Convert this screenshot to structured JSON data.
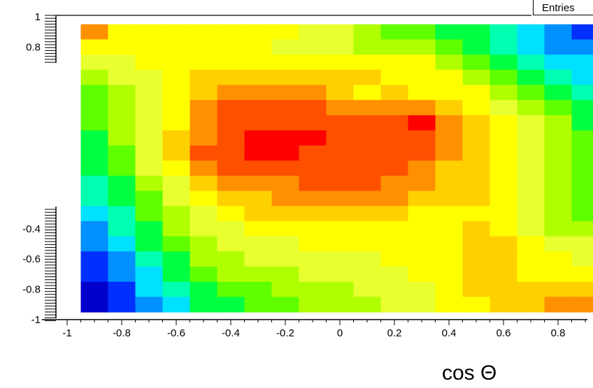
{
  "chart_data": {
    "type": "heatmap",
    "stats_box_label": "Entries",
    "xlabel": "cos Θ",
    "ylabel": "",
    "xlim": [
      -1,
      0.9
    ],
    "ylim": [
      -1,
      1
    ],
    "x_ticks": [
      "-1",
      "-0.8",
      "-0.6",
      "-0.4",
      "-0.2",
      "0",
      "0.2",
      "0.4",
      "0.6",
      "0.8"
    ],
    "y_ticks": [
      {
        "label": "1",
        "value": 1
      },
      {
        "label": "0.8",
        "value": 0.8
      },
      {
        "label": "-0.4",
        "value": -0.4
      },
      {
        "label": "-0.6",
        "value": -0.6
      },
      {
        "label": "-0.8",
        "value": -0.8
      },
      {
        "label": "-1",
        "value": -1
      }
    ],
    "colorscale": [
      "#0000cc",
      "#0030ff",
      "#0090ff",
      "#00e0ff",
      "#00ffb0",
      "#00ff40",
      "#60ff00",
      "#b0ff00",
      "#e8ff30",
      "#ffff00",
      "#ffd000",
      "#ff9000",
      "#ff5000",
      "#ff0000"
    ],
    "x_cells": [
      -0.9,
      -0.8,
      -0.7,
      -0.6,
      -0.5,
      -0.4,
      -0.3,
      -0.2,
      -0.1,
      0.0,
      0.1,
      0.2,
      0.3,
      0.4,
      0.5,
      0.6,
      0.7,
      0.8,
      0.9
    ],
    "y_cells": [
      0.9,
      0.8,
      0.7,
      0.6,
      0.5,
      0.4,
      0.3,
      0.2,
      0.1,
      0.0,
      -0.1,
      -0.2,
      -0.3,
      -0.4,
      -0.5,
      -0.6,
      -0.7,
      -0.8,
      -0.9
    ],
    "z": [
      [
        11,
        9,
        9,
        9,
        9,
        9,
        9,
        9,
        8,
        8,
        7,
        6,
        6,
        5,
        5,
        4,
        3,
        2,
        1
      ],
      [
        9,
        9,
        9,
        9,
        9,
        9,
        9,
        8,
        8,
        8,
        7,
        7,
        7,
        6,
        5,
        4,
        3,
        2,
        2
      ],
      [
        8,
        8,
        9,
        9,
        9,
        9,
        9,
        9,
        9,
        9,
        9,
        9,
        9,
        7,
        6,
        5,
        4,
        3,
        3
      ],
      [
        7,
        8,
        8,
        9,
        10,
        10,
        10,
        10,
        10,
        10,
        10,
        9,
        9,
        9,
        7,
        6,
        5,
        4,
        3
      ],
      [
        6,
        7,
        8,
        9,
        10,
        11,
        11,
        11,
        11,
        10,
        9,
        10,
        9,
        9,
        9,
        7,
        6,
        5,
        4
      ],
      [
        6,
        7,
        8,
        9,
        11,
        12,
        12,
        12,
        12,
        11,
        11,
        11,
        11,
        10,
        9,
        8,
        7,
        6,
        5
      ],
      [
        6,
        7,
        8,
        9,
        11,
        12,
        12,
        12,
        12,
        12,
        12,
        12,
        13,
        11,
        10,
        9,
        8,
        7,
        5
      ],
      [
        5,
        7,
        8,
        10,
        11,
        12,
        13,
        13,
        13,
        12,
        12,
        12,
        12,
        11,
        10,
        9,
        8,
        7,
        6
      ],
      [
        5,
        6,
        8,
        10,
        12,
        12,
        13,
        13,
        12,
        12,
        12,
        12,
        12,
        11,
        10,
        9,
        8,
        7,
        6
      ],
      [
        5,
        6,
        8,
        9,
        11,
        12,
        12,
        12,
        12,
        12,
        12,
        12,
        11,
        10,
        10,
        9,
        8,
        7,
        6
      ],
      [
        4,
        5,
        7,
        8,
        10,
        11,
        11,
        11,
        12,
        12,
        12,
        11,
        11,
        10,
        10,
        9,
        8,
        7,
        6
      ],
      [
        4,
        5,
        6,
        8,
        9,
        10,
        10,
        11,
        11,
        11,
        11,
        11,
        10,
        10,
        10,
        9,
        8,
        7,
        6
      ],
      [
        3,
        4,
        6,
        7,
        8,
        9,
        10,
        10,
        10,
        10,
        10,
        10,
        9,
        9,
        9,
        9,
        8,
        7,
        6
      ],
      [
        2,
        4,
        5,
        7,
        8,
        8,
        9,
        9,
        9,
        9,
        9,
        9,
        9,
        9,
        10,
        9,
        8,
        7,
        7
      ],
      [
        2,
        3,
        5,
        6,
        7,
        8,
        8,
        8,
        9,
        9,
        9,
        9,
        9,
        9,
        10,
        10,
        9,
        8,
        8
      ],
      [
        1,
        2,
        4,
        5,
        7,
        7,
        8,
        8,
        8,
        8,
        8,
        9,
        9,
        9,
        10,
        10,
        9,
        9,
        8
      ],
      [
        1,
        2,
        3,
        5,
        6,
        7,
        7,
        7,
        8,
        8,
        8,
        8,
        9,
        9,
        10,
        10,
        9,
        9,
        9
      ],
      [
        0,
        1,
        3,
        4,
        5,
        6,
        6,
        7,
        7,
        7,
        8,
        8,
        8,
        9,
        10,
        10,
        10,
        10,
        10
      ],
      [
        0,
        1,
        2,
        3,
        5,
        5,
        6,
        6,
        7,
        7,
        7,
        8,
        8,
        9,
        9,
        10,
        10,
        11,
        11
      ]
    ]
  }
}
